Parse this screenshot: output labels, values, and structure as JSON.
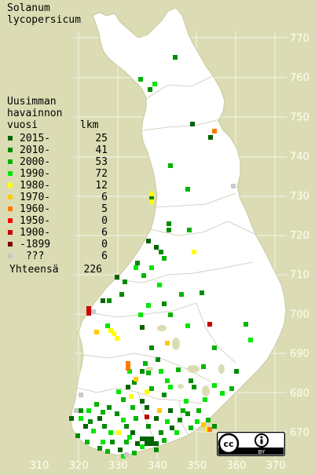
{
  "title": [
    "Solanum",
    "lycopersicum"
  ],
  "legend_title": [
    "Uusimman",
    "havainnon"
  ],
  "legend_subhead": {
    "period": "vuosi",
    "count": "lkm"
  },
  "legend": [
    {
      "label": "2015-",
      "count": "25",
      "color": "#006400"
    },
    {
      "label": "2010-",
      "count": "41",
      "color": "#008c00"
    },
    {
      "label": "2000-",
      "count": "53",
      "color": "#00b400"
    },
    {
      "label": "1990-",
      "count": "72",
      "color": "#00e600"
    },
    {
      "label": "1980-",
      "count": "12",
      "color": "#ffff00"
    },
    {
      "label": "1970-",
      "count": "6",
      "color": "#ffc800"
    },
    {
      "label": "1960-",
      "count": "5",
      "color": "#ff7800"
    },
    {
      "label": "1950-",
      "count": "0",
      "color": "#ff0000"
    },
    {
      "label": "1900-",
      "count": "6",
      "color": "#c80000"
    },
    {
      "label": "-1899",
      "count": "0",
      "color": "#780000"
    },
    {
      "label": " ???",
      "count": "6",
      "color": "#c8c8c8"
    }
  ],
  "total": {
    "label": "Yhteensä",
    "count": "226"
  },
  "y_axis_labels": [
    "770",
    "760",
    "750",
    "740",
    "730",
    "720",
    "710",
    "700",
    "690",
    "680",
    "670"
  ],
  "x_axis_labels": [
    "310",
    "320",
    "330",
    "340",
    "350",
    "360",
    "370"
  ],
  "license_badge": {
    "icon": "cc-by-icon",
    "text": "BY"
  }
}
